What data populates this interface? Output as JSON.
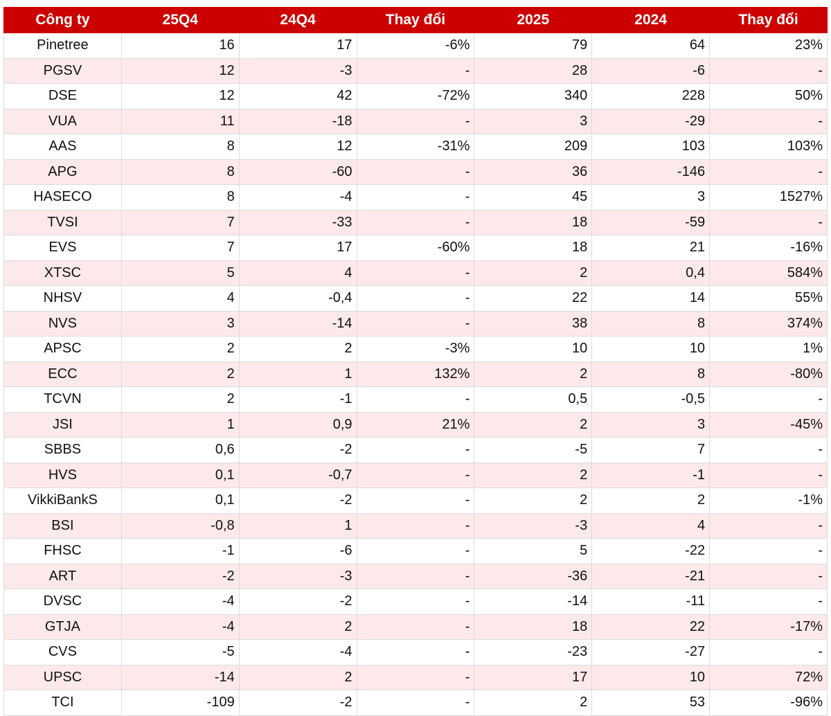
{
  "table": {
    "header": [
      "Công ty",
      "25Q4",
      "24Q4",
      "Thay đổi",
      "2025",
      "2024",
      "Thay đổi"
    ],
    "rows": [
      [
        "Pinetree",
        "16",
        "17",
        "-6%",
        "79",
        "64",
        "23%"
      ],
      [
        "PGSV",
        "12",
        "-3",
        "-",
        "28",
        "-6",
        "-"
      ],
      [
        "DSE",
        "12",
        "42",
        "-72%",
        "340",
        "228",
        "50%"
      ],
      [
        "VUA",
        "11",
        "-18",
        "-",
        "3",
        "-29",
        "-"
      ],
      [
        "AAS",
        "8",
        "12",
        "-31%",
        "209",
        "103",
        "103%"
      ],
      [
        "APG",
        "8",
        "-60",
        "-",
        "36",
        "-146",
        "-"
      ],
      [
        "HASECO",
        "8",
        "-4",
        "-",
        "45",
        "3",
        "1527%"
      ],
      [
        "TVSI",
        "7",
        "-33",
        "-",
        "18",
        "-59",
        "-"
      ],
      [
        "EVS",
        "7",
        "17",
        "-60%",
        "18",
        "21",
        "-16%"
      ],
      [
        "XTSC",
        "5",
        "4",
        "-",
        "2",
        "0,4",
        "584%"
      ],
      [
        "NHSV",
        "4",
        "-0,4",
        "-",
        "22",
        "14",
        "55%"
      ],
      [
        "NVS",
        "3",
        "-14",
        "-",
        "38",
        "8",
        "374%"
      ],
      [
        "APSC",
        "2",
        "2",
        "-3%",
        "10",
        "10",
        "1%"
      ],
      [
        "ECC",
        "2",
        "1",
        "132%",
        "2",
        "8",
        "-80%"
      ],
      [
        "TCVN",
        "2",
        "-1",
        "-",
        "0,5",
        "-0,5",
        "-"
      ],
      [
        "JSI",
        "1",
        "0,9",
        "21%",
        "2",
        "3",
        "-45%"
      ],
      [
        "SBBS",
        "0,6",
        "-2",
        "-",
        "-5",
        "7",
        "-"
      ],
      [
        "HVS",
        "0,1",
        "-0,7",
        "-",
        "2",
        "-1",
        "-"
      ],
      [
        "VikkiBankS",
        "0,1",
        "-2",
        "-",
        "2",
        "2",
        "-1%"
      ],
      [
        "BSI",
        "-0,8",
        "1",
        "-",
        "-3",
        "4",
        "-"
      ],
      [
        "FHSC",
        "-1",
        "-6",
        "-",
        "5",
        "-22",
        "-"
      ],
      [
        "ART",
        "-2",
        "-3",
        "-",
        "-36",
        "-21",
        "-"
      ],
      [
        "DVSC",
        "-4",
        "-2",
        "-",
        "-14",
        "-11",
        "-"
      ],
      [
        "GTJA",
        "-4",
        "2",
        "-",
        "18",
        "22",
        "-17%"
      ],
      [
        "CVS",
        "-5",
        "-4",
        "-",
        "-23",
        "-27",
        "-"
      ],
      [
        "UPSC",
        "-14",
        "2",
        "-",
        "17",
        "10",
        "72%"
      ],
      [
        "TCI",
        "-109",
        "-2",
        "-",
        "2",
        "53",
        "-96%"
      ]
    ]
  }
}
